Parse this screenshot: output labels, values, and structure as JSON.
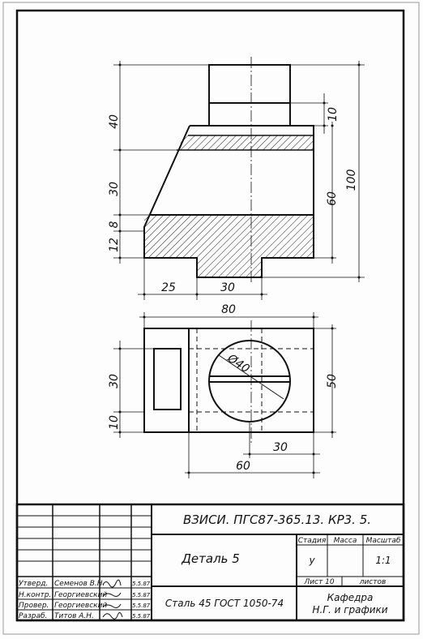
{
  "drawing": {
    "front_view": {
      "dims_left": [
        "40",
        "30",
        "8",
        "12"
      ],
      "dims_right": [
        "10",
        "60",
        "100"
      ],
      "dims_bottom": [
        "25",
        "30"
      ]
    },
    "top_view": {
      "dim_top": "80",
      "dims_left": [
        "30",
        "10"
      ],
      "dim_right": "50",
      "dims_bottom": [
        "30",
        "60"
      ],
      "diameter": "Ø40"
    }
  },
  "title_block": {
    "designation": "ВЗИСИ. ПГС87-365.13. КР3. 5.",
    "part_name": "Деталь 5",
    "material": "Сталь 45 ГОСТ 1050-74",
    "organization": [
      "Кафедра",
      "Н.Г. и графики"
    ],
    "headers": {
      "stage": "Стадия",
      "mass": "Масса",
      "scale": "Масштаб"
    },
    "stage_value": "у",
    "scale_value": "1:1",
    "sheet_label": "Лист 10",
    "sheets_label": "листов",
    "signatures": [
      {
        "role": "Утверд.",
        "name": "Семенов В.Н.",
        "date": "5.5.87"
      },
      {
        "role": "Н.контр.",
        "name": "Георгиевский",
        "date": "5.5.87"
      },
      {
        "role": "Провер.",
        "name": "Георгиевский",
        "date": "5.5.87"
      },
      {
        "role": "Разраб.",
        "name": "Титов А.Н.",
        "date": "5.5.87"
      }
    ]
  }
}
